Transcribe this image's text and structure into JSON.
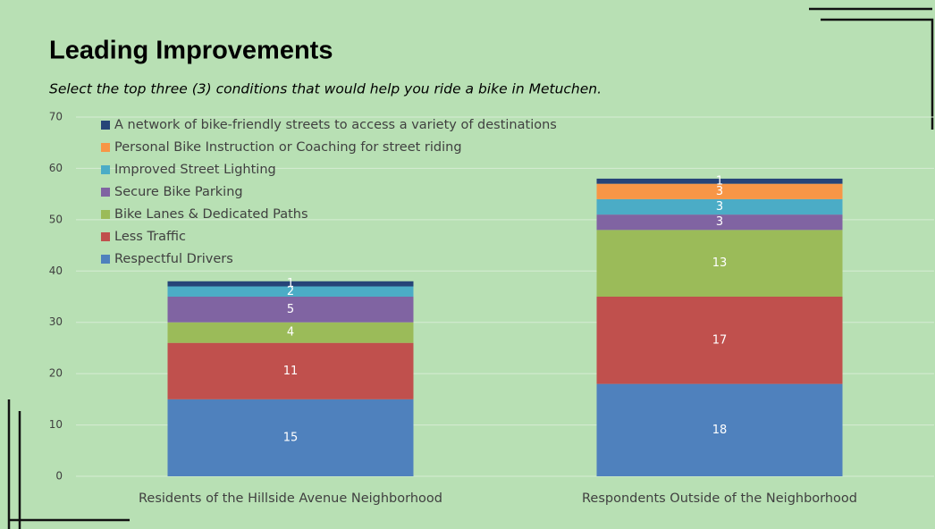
{
  "chart_data": {
    "type": "stacked_bar",
    "title": "Leading Improvements",
    "subtitle": "Select the top three (3) conditions that would help you ride a bike in Metuchen.",
    "categories": [
      "Residents of the Hillside Avenue Neighborhood",
      "Respondents Outside of the Neighborhood"
    ],
    "series": [
      {
        "name": "Respectful Drivers",
        "color": "#4f81bd",
        "values": [
          15,
          18
        ]
      },
      {
        "name": "Less Traffic",
        "color": "#c0504d",
        "values": [
          11,
          17
        ]
      },
      {
        "name": "Bike Lanes & Dedicated Paths",
        "color": "#9bbb59",
        "values": [
          4,
          13
        ]
      },
      {
        "name": "Secure Bike Parking",
        "color": "#8064a2",
        "values": [
          5,
          3
        ]
      },
      {
        "name": "Improved Street Lighting",
        "color": "#4bacc6",
        "values": [
          2,
          3
        ]
      },
      {
        "name": "Personal Bike Instruction or Coaching for street riding",
        "color": "#f79646",
        "values": [
          null,
          3
        ]
      },
      {
        "name": "A network of bike-friendly streets to access a variety of destinations",
        "color": "#264478",
        "values": [
          1,
          1
        ]
      }
    ],
    "ylim": [
      0,
      70
    ],
    "yticks": [
      0,
      10,
      20,
      30,
      40,
      50,
      60,
      70
    ],
    "grid": true,
    "legend": "top-left"
  }
}
